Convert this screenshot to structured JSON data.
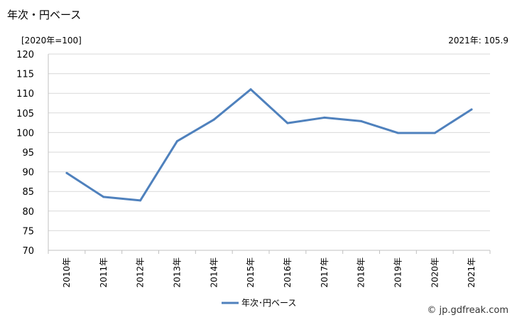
{
  "header": {
    "title": "年次・円ベース",
    "unit": "[2020年=100]",
    "latest": "2021年: 105.9"
  },
  "footer": {
    "credit": "© jp.gdfreak.com"
  },
  "colors": {
    "series": "#4f81bd",
    "grid": "#d9d9d9"
  },
  "chart_data": {
    "type": "line",
    "title": "年次・円ベース",
    "categories": [
      "2010年",
      "2011年",
      "2012年",
      "2013年",
      "2014年",
      "2015年",
      "2016年",
      "2017年",
      "2018年",
      "2019年",
      "2020年",
      "2021年"
    ],
    "series": [
      {
        "name": "年次･円ベース",
        "values": [
          89.7,
          83.6,
          82.7,
          97.8,
          103.3,
          111.0,
          102.4,
          103.8,
          102.9,
          99.9,
          99.9,
          105.9
        ]
      }
    ],
    "ylim": [
      70,
      120
    ],
    "yticks": [
      70,
      75,
      80,
      85,
      90,
      95,
      100,
      105,
      110,
      115,
      120
    ],
    "grid": true,
    "legend": "bottom-center"
  }
}
